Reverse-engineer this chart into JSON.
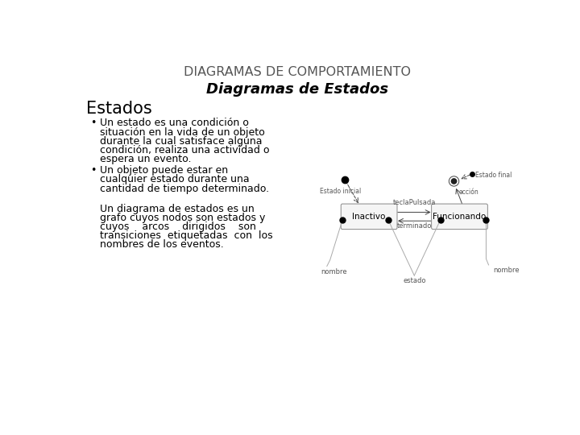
{
  "title1": "DIAGRAMAS DE COMPORTAMIENTO",
  "title2": "Diagramas de Estados",
  "section_title": "Estados",
  "bullet1_line1": "Un estado es una condición o",
  "bullet1_line2": "situación en la vida de un objeto",
  "bullet1_line3": "durante la cual satisface alguna",
  "bullet1_line4": "condición, realiza una actividad o",
  "bullet1_line5": "espera un evento.",
  "bullet2_line1": "Un objeto puede estar en",
  "bullet2_line2": "cualquier estado durante una",
  "bullet2_line3": "cantidad de tiempo determinado.",
  "para_line1": "Un diagrama de estados es un",
  "para_line2": "grafo cuyos nodos son estados y",
  "para_line3": "cuyos    arcos    dirigidos    son",
  "para_line4": "transiciones  etiquetadas  con  los",
  "para_line5": "nombres de los eventos.",
  "state1": "Inactivo",
  "state2": "Funcionando",
  "transition1": "teclaPulsada",
  "transition2": "terminado",
  "label_inicial": "Estado inicial",
  "label_final": "Estado final",
  "label_nombre1": "nombre",
  "label_nombre2": "nombre",
  "label_estado": "estado",
  "label_accion": "acción",
  "bg_color": "#ffffff",
  "text_color": "#000000",
  "title1_color": "#555555",
  "title2_color": "#000000",
  "diag_line_color": "#888888",
  "diag_text_color": "#555555"
}
